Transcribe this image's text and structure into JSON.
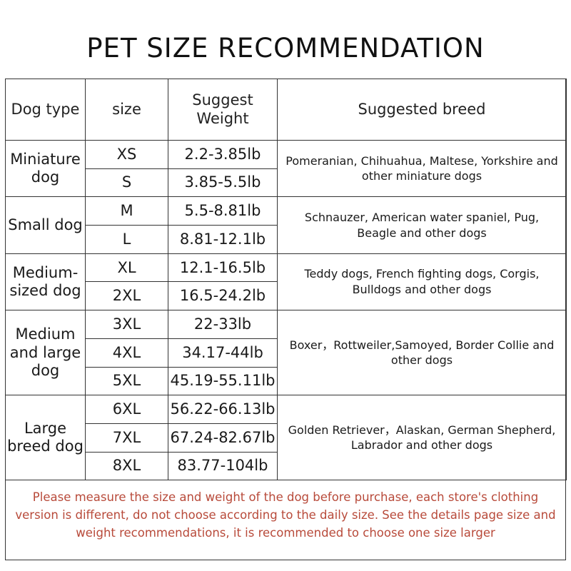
{
  "title": "PET SIZE RECOMMENDATION",
  "headers": {
    "dog_type": "Dog type",
    "size": "size",
    "weight_line1": "Suggest",
    "weight_line2": "Weight",
    "breed": "Suggested breed"
  },
  "groups": [
    {
      "type": "Miniature dog",
      "breeds": "Pomeranian, Chihuahua, Maltese, Yorkshire and other miniature dogs",
      "rows": [
        {
          "size": "XS",
          "weight": "2.2-3.85lb"
        },
        {
          "size": "S",
          "weight": "3.85-5.5lb"
        }
      ]
    },
    {
      "type": "Small dog",
      "breeds": "Schnauzer, American water spaniel, Pug, Beagle and other dogs",
      "rows": [
        {
          "size": "M",
          "weight": "5.5-8.81lb"
        },
        {
          "size": "L",
          "weight": "8.81-12.1lb"
        }
      ]
    },
    {
      "type": "Medium-sized dog",
      "breeds": "Teddy dogs, French fighting dogs, Corgis, Bulldogs and other dogs",
      "rows": [
        {
          "size": "XL",
          "weight": "12.1-16.5lb"
        },
        {
          "size": "2XL",
          "weight": "16.5-24.2lb"
        }
      ]
    },
    {
      "type": "Medium and large dog",
      "breeds": "Boxer，Rottweiler,Samoyed, Border Collie and other dogs",
      "rows": [
        {
          "size": "3XL",
          "weight": "22-33lb"
        },
        {
          "size": "4XL",
          "weight": "34.17-44lb"
        },
        {
          "size": "5XL",
          "weight": "45.19-55.11lb"
        }
      ]
    },
    {
      "type": "Large breed dog",
      "breeds": "Golden Retriever，Alaskan, German Shepherd, Labrador and other dogs",
      "rows": [
        {
          "size": "6XL",
          "weight": "56.22-66.13lb"
        },
        {
          "size": "7XL",
          "weight": "67.24-82.67lb"
        },
        {
          "size": "8XL",
          "weight": "83.77-104lb"
        }
      ]
    }
  ],
  "note": "Please measure the size and weight of the dog before purchase, each store's clothing version is different, do not choose according to the daily size. See the details page size and weight recommendations, it is recommended to choose one size larger",
  "colors": {
    "note": "#b84a3a",
    "border": "#333333"
  }
}
